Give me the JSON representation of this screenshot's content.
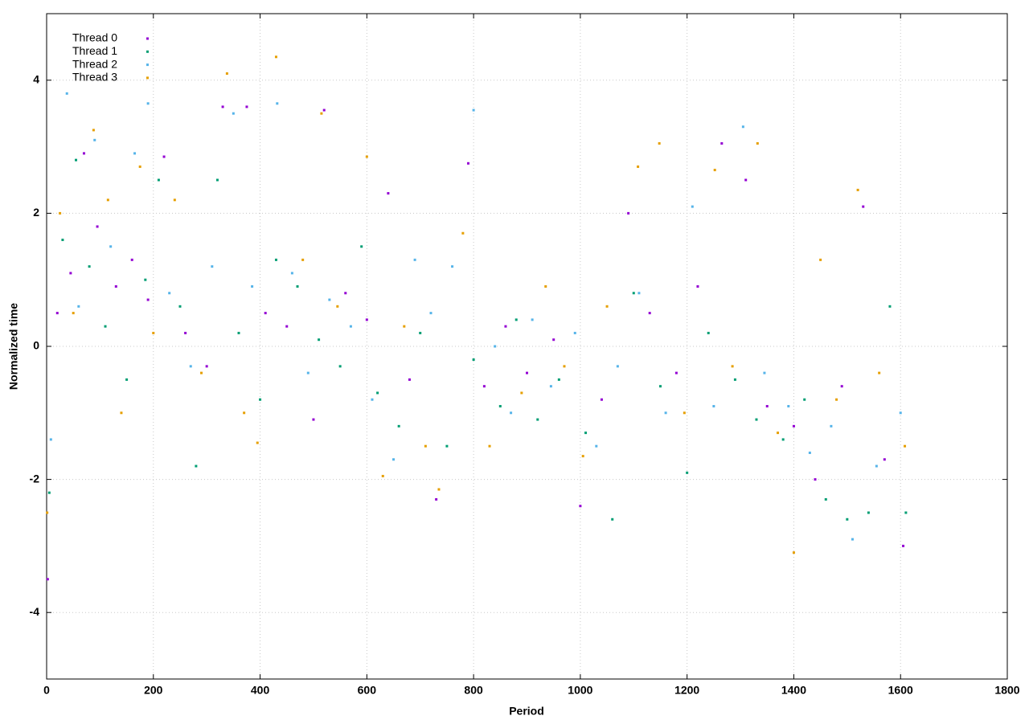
{
  "chart_data": {
    "type": "scatter",
    "x_label": "Period",
    "y_label": "Normalized time",
    "xlim": [
      0,
      1800
    ],
    "xticks": [
      0,
      200,
      400,
      600,
      800,
      1000,
      1200,
      1400,
      1600,
      1800
    ],
    "ylim": [
      -5,
      5
    ],
    "yticks": [
      -4,
      -2,
      0,
      2,
      4
    ],
    "grid": true,
    "legend": "top-left",
    "series": [
      {
        "name": "Thread 0",
        "color": "#9400d3",
        "x": [
          2,
          20,
          45,
          70,
          95,
          130,
          160,
          190,
          220,
          260,
          300,
          330,
          375,
          410,
          450,
          500,
          520,
          560,
          600,
          640,
          680,
          730,
          790,
          820,
          860,
          900,
          950,
          1000,
          1040,
          1090,
          1130,
          1180,
          1220,
          1265,
          1310,
          1350,
          1400,
          1440,
          1490,
          1530,
          1570,
          1605
        ],
        "values": [
          -3.5,
          0.5,
          1.1,
          2.9,
          1.8,
          0.9,
          1.3,
          0.7,
          2.85,
          0.2,
          -0.3,
          3.6,
          3.6,
          0.5,
          0.3,
          -1.1,
          3.55,
          0.8,
          0.4,
          2.3,
          -0.5,
          -2.3,
          2.75,
          -0.6,
          0.3,
          -0.4,
          0.1,
          -2.4,
          -0.8,
          2.0,
          0.5,
          -0.4,
          0.9,
          3.05,
          2.5,
          -0.9,
          -1.2,
          -2.0,
          -0.6,
          2.1,
          -1.7,
          -3.0
        ]
      },
      {
        "name": "Thread 1",
        "color": "#009e73",
        "x": [
          5,
          30,
          55,
          80,
          110,
          150,
          185,
          210,
          250,
          280,
          320,
          360,
          400,
          430,
          470,
          510,
          550,
          590,
          620,
          660,
          700,
          750,
          800,
          850,
          880,
          920,
          960,
          1010,
          1060,
          1100,
          1150,
          1200,
          1240,
          1290,
          1330,
          1380,
          1420,
          1460,
          1500,
          1540,
          1580,
          1610
        ],
        "values": [
          -2.2,
          1.6,
          2.8,
          1.2,
          0.3,
          -0.5,
          1.0,
          2.5,
          0.6,
          -1.8,
          2.5,
          0.2,
          -0.8,
          1.3,
          0.9,
          0.1,
          -0.3,
          1.5,
          -0.7,
          -1.2,
          0.2,
          -1.5,
          -0.2,
          -0.9,
          0.4,
          -1.1,
          -0.5,
          -1.3,
          -2.6,
          0.8,
          -0.6,
          -1.9,
          0.2,
          -0.5,
          -1.1,
          -1.4,
          -0.8,
          -2.3,
          -2.6,
          -2.5,
          0.6,
          -2.5
        ]
      },
      {
        "name": "Thread 2",
        "color": "#56b4e9",
        "x": [
          8,
          38,
          60,
          90,
          120,
          165,
          190,
          230,
          270,
          310,
          350,
          385,
          432,
          460,
          490,
          530,
          570,
          610,
          650,
          690,
          720,
          760,
          800,
          840,
          870,
          910,
          945,
          990,
          1030,
          1070,
          1110,
          1160,
          1210,
          1250,
          1305,
          1345,
          1390,
          1430,
          1470,
          1510,
          1555,
          1600
        ],
        "values": [
          -1.4,
          3.8,
          0.6,
          3.1,
          1.5,
          2.9,
          3.65,
          0.8,
          -0.3,
          1.2,
          3.5,
          0.9,
          3.65,
          1.1,
          -0.4,
          0.7,
          0.3,
          -0.8,
          -1.7,
          1.3,
          0.5,
          1.2,
          3.55,
          0.0,
          -1.0,
          0.4,
          -0.6,
          0.2,
          -1.5,
          -0.3,
          0.8,
          -1.0,
          2.1,
          -0.9,
          3.3,
          -0.4,
          -0.9,
          -1.6,
          -1.2,
          -2.9,
          -1.8,
          -1.0
        ]
      },
      {
        "name": "Thread 3",
        "color": "#e69f00",
        "x": [
          1,
          25,
          50,
          88,
          115,
          140,
          175,
          200,
          240,
          290,
          338,
          370,
          395,
          430,
          480,
          515,
          545,
          600,
          630,
          670,
          710,
          735,
          780,
          830,
          890,
          935,
          970,
          1005,
          1050,
          1108,
          1148,
          1195,
          1252,
          1285,
          1332,
          1370,
          1400,
          1450,
          1480,
          1520,
          1560,
          1608
        ],
        "values": [
          -2.5,
          2.0,
          0.5,
          3.25,
          2.2,
          -1.0,
          2.7,
          0.2,
          2.2,
          -0.4,
          4.1,
          -1.0,
          -1.45,
          4.35,
          1.3,
          3.5,
          0.6,
          2.85,
          -1.95,
          0.3,
          -1.5,
          -2.15,
          1.7,
          -1.5,
          -0.7,
          0.9,
          -0.3,
          -1.65,
          0.6,
          2.7,
          3.05,
          -1.0,
          2.65,
          -0.3,
          3.05,
          -1.3,
          -3.1,
          1.3,
          -0.8,
          2.35,
          -0.4,
          -1.5
        ]
      }
    ]
  }
}
